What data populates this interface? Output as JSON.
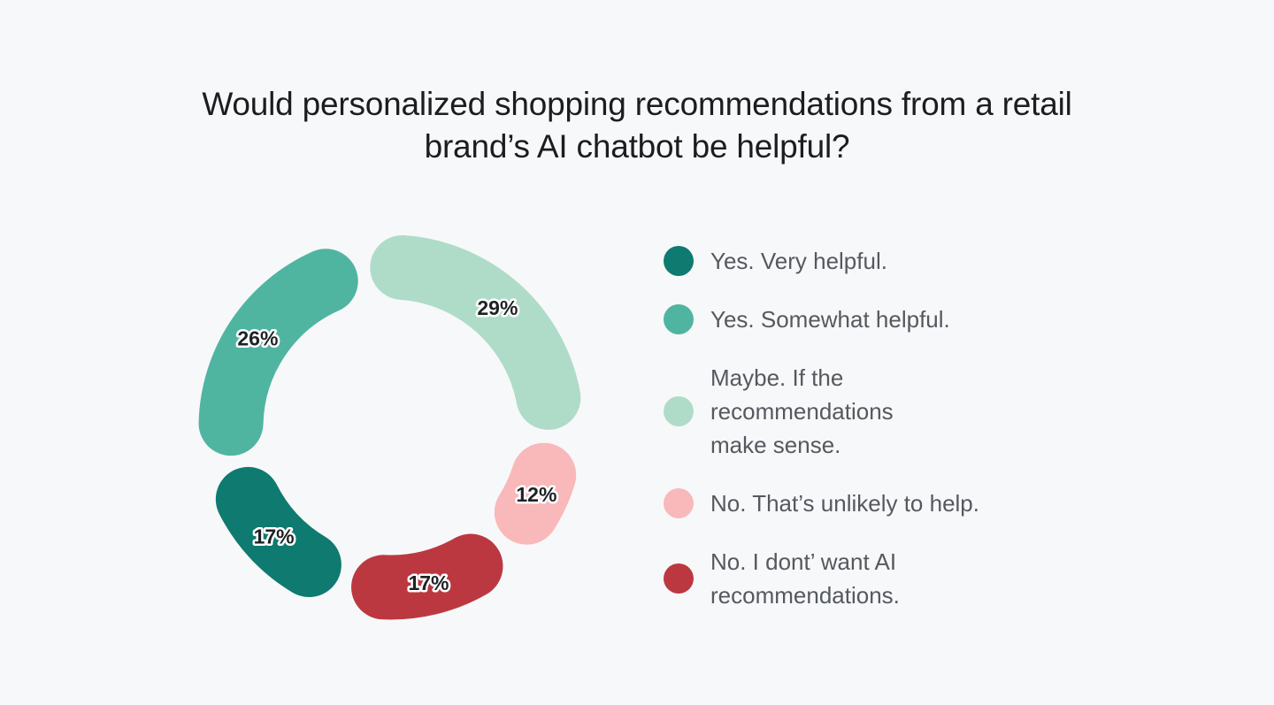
{
  "title": "Would personalized shopping recommendations from a retail brand’s AI chatbot be helpful?",
  "title_lines": [
    "Would personalized shopping recommendations from a retail",
    "brand’s AI chatbot be helpful?"
  ],
  "colors": {
    "background": "#f7f8f9",
    "title_text": "#1b1d20",
    "legend_text": "#55595f",
    "value_label_text": "#1f2225",
    "value_label_halo": "#ffffff",
    "very_helpful": "#0e7a70",
    "somewhat_helpful": "#4fb5a1",
    "maybe": "#afdcc9",
    "no_unlikely": "#f9b8ba",
    "no_dont_want": "#bc3840"
  },
  "chart_data": {
    "type": "donut",
    "title": "Would personalized shopping recommendations from a retail brand’s AI chatbot be helpful?",
    "unit": "%",
    "start_angle_deg": -10,
    "direction": "clockwise",
    "legend_position": "right",
    "segments": [
      {
        "key": "maybe",
        "label": "Maybe. If the recommendations make sense.",
        "value": 29,
        "color": "#afdcc9"
      },
      {
        "key": "no-unlikely",
        "label": "No. That’s unlikely to help.",
        "value": 12,
        "color": "#f9b8ba"
      },
      {
        "key": "no-dont-want",
        "label": "No. I dont’ want AI recommendations.",
        "value": 17,
        "color": "#bc3840"
      },
      {
        "key": "very-helpful",
        "label": "Yes. Very helpful.",
        "value": 17,
        "color": "#0e7a70"
      },
      {
        "key": "somewhat-helpful",
        "label": "Yes. Somewhat helpful.",
        "value": 26,
        "color": "#4fb5a1"
      }
    ]
  },
  "legend": {
    "items": [
      {
        "key": "very-helpful",
        "color": "#0e7a70",
        "value": 17,
        "lines": [
          "Yes. Very helpful."
        ]
      },
      {
        "key": "somewhat-helpful",
        "color": "#4fb5a1",
        "value": 26,
        "lines": [
          "Yes. Somewhat helpful."
        ]
      },
      {
        "key": "maybe",
        "color": "#afdcc9",
        "value": 29,
        "lines": [
          "Maybe. If the",
          "recommendations",
          "make sense."
        ]
      },
      {
        "key": "no-unlikely",
        "color": "#f9b8ba",
        "value": 12,
        "lines": [
          "No. That’s unlikely to help."
        ]
      },
      {
        "key": "no-dont-want",
        "color": "#bc3840",
        "value": 17,
        "lines": [
          "No. I dont’ want AI",
          "recommendations."
        ]
      }
    ]
  }
}
